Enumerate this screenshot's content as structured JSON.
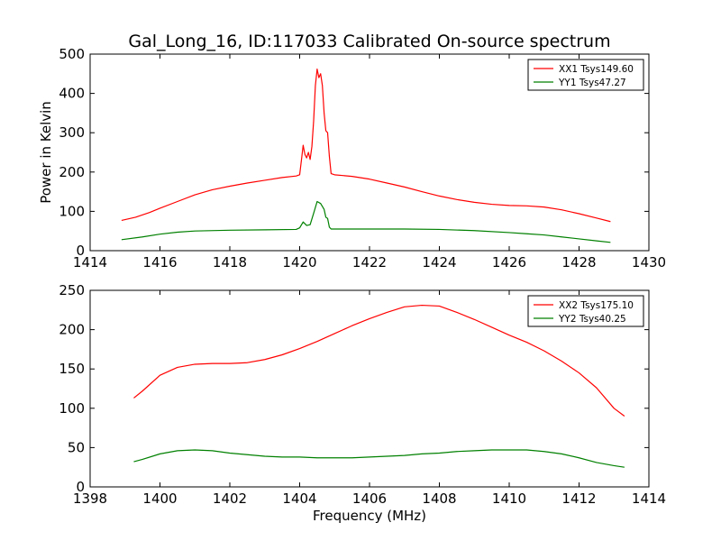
{
  "chart_data": [
    {
      "type": "line",
      "title": "Gal_Long_16, ID:117033 Calibrated On-source spectrum",
      "xlabel": "",
      "ylabel": "Power in Kelvin",
      "xlim": [
        1414,
        1430
      ],
      "ylim": [
        0,
        500
      ],
      "xticks": [
        1414,
        1416,
        1418,
        1420,
        1422,
        1424,
        1426,
        1428,
        1430
      ],
      "yticks": [
        0,
        100,
        200,
        300,
        400,
        500
      ],
      "grid": false,
      "legend": "top-right",
      "series": [
        {
          "name": "XX1 Tsys149.60",
          "color": "#ff0000",
          "points": [
            [
              1414.9,
              77
            ],
            [
              1415.3,
              85
            ],
            [
              1415.7,
              97
            ],
            [
              1416.0,
              108
            ],
            [
              1416.5,
              125
            ],
            [
              1417.0,
              142
            ],
            [
              1417.5,
              155
            ],
            [
              1418.0,
              164
            ],
            [
              1418.5,
              172
            ],
            [
              1419.0,
              179
            ],
            [
              1419.5,
              186
            ],
            [
              1419.9,
              190
            ],
            [
              1420.0,
              193
            ],
            [
              1420.05,
              230
            ],
            [
              1420.1,
              268
            ],
            [
              1420.15,
              245
            ],
            [
              1420.2,
              236
            ],
            [
              1420.25,
              250
            ],
            [
              1420.3,
              232
            ],
            [
              1420.35,
              265
            ],
            [
              1420.4,
              330
            ],
            [
              1420.45,
              420
            ],
            [
              1420.5,
              462
            ],
            [
              1420.55,
              440
            ],
            [
              1420.6,
              450
            ],
            [
              1420.65,
              420
            ],
            [
              1420.7,
              350
            ],
            [
              1420.75,
              305
            ],
            [
              1420.8,
              300
            ],
            [
              1420.85,
              240
            ],
            [
              1420.9,
              196
            ],
            [
              1421.0,
              193
            ],
            [
              1421.5,
              189
            ],
            [
              1422.0,
              182
            ],
            [
              1422.5,
              172
            ],
            [
              1423.0,
              162
            ],
            [
              1423.5,
              150
            ],
            [
              1424.0,
              139
            ],
            [
              1424.5,
              130
            ],
            [
              1425.0,
              123
            ],
            [
              1425.5,
              118
            ],
            [
              1426.0,
              115
            ],
            [
              1426.5,
              114
            ],
            [
              1427.0,
              111
            ],
            [
              1427.5,
              104
            ],
            [
              1428.0,
              94
            ],
            [
              1428.5,
              83
            ],
            [
              1428.9,
              74
            ]
          ]
        },
        {
          "name": "YY1 Tsys47.27",
          "color": "#008000",
          "points": [
            [
              1414.9,
              28
            ],
            [
              1415.5,
              35
            ],
            [
              1416.0,
              42
            ],
            [
              1416.5,
              47
            ],
            [
              1417.0,
              50
            ],
            [
              1418.0,
              52
            ],
            [
              1419.0,
              53
            ],
            [
              1419.9,
              54
            ],
            [
              1420.0,
              58
            ],
            [
              1420.1,
              73
            ],
            [
              1420.2,
              64
            ],
            [
              1420.3,
              66
            ],
            [
              1420.4,
              95
            ],
            [
              1420.5,
              125
            ],
            [
              1420.6,
              120
            ],
            [
              1420.7,
              105
            ],
            [
              1420.75,
              85
            ],
            [
              1420.8,
              82
            ],
            [
              1420.85,
              60
            ],
            [
              1420.9,
              55
            ],
            [
              1421.5,
              55
            ],
            [
              1422.0,
              55
            ],
            [
              1423.0,
              55
            ],
            [
              1424.0,
              54
            ],
            [
              1425.0,
              51
            ],
            [
              1426.0,
              46
            ],
            [
              1426.5,
              43
            ],
            [
              1427.0,
              40
            ],
            [
              1427.5,
              35
            ],
            [
              1428.0,
              30
            ],
            [
              1428.5,
              25
            ],
            [
              1428.9,
              21
            ]
          ]
        }
      ]
    },
    {
      "type": "line",
      "title": "",
      "xlabel": "Frequency (MHz)",
      "ylabel": "",
      "xlim": [
        1398,
        1414
      ],
      "ylim": [
        0,
        250
      ],
      "xticks": [
        1398,
        1400,
        1402,
        1404,
        1406,
        1408,
        1410,
        1412,
        1414
      ],
      "yticks": [
        0,
        50,
        100,
        150,
        200,
        250
      ],
      "grid": false,
      "legend": "top-right",
      "series": [
        {
          "name": "XX2 Tsys175.10",
          "color": "#ff0000",
          "points": [
            [
              1399.25,
              113
            ],
            [
              1399.5,
              122
            ],
            [
              1400.0,
              142
            ],
            [
              1400.5,
              152
            ],
            [
              1401.0,
              156
            ],
            [
              1401.5,
              157
            ],
            [
              1402.0,
              157
            ],
            [
              1402.5,
              158
            ],
            [
              1403.0,
              162
            ],
            [
              1403.5,
              168
            ],
            [
              1404.0,
              176
            ],
            [
              1404.5,
              185
            ],
            [
              1405.0,
              195
            ],
            [
              1405.5,
              205
            ],
            [
              1406.0,
              214
            ],
            [
              1406.5,
              222
            ],
            [
              1407.0,
              229
            ],
            [
              1407.5,
              231
            ],
            [
              1408.0,
              230
            ],
            [
              1408.5,
              222
            ],
            [
              1409.0,
              213
            ],
            [
              1409.5,
              203
            ],
            [
              1410.0,
              193
            ],
            [
              1410.5,
              184
            ],
            [
              1411.0,
              173
            ],
            [
              1411.5,
              160
            ],
            [
              1412.0,
              145
            ],
            [
              1412.5,
              126
            ],
            [
              1413.0,
              100
            ],
            [
              1413.3,
              90
            ]
          ]
        },
        {
          "name": "YY2 Tsys40.25",
          "color": "#008000",
          "points": [
            [
              1399.25,
              32
            ],
            [
              1399.5,
              35
            ],
            [
              1400.0,
              42
            ],
            [
              1400.5,
              46
            ],
            [
              1401.0,
              47
            ],
            [
              1401.5,
              46
            ],
            [
              1402.0,
              43
            ],
            [
              1402.5,
              41
            ],
            [
              1403.0,
              39
            ],
            [
              1403.5,
              38
            ],
            [
              1404.0,
              38
            ],
            [
              1404.5,
              37
            ],
            [
              1405.0,
              37
            ],
            [
              1405.5,
              37
            ],
            [
              1406.0,
              38
            ],
            [
              1406.5,
              39
            ],
            [
              1407.0,
              40
            ],
            [
              1407.5,
              42
            ],
            [
              1408.0,
              43
            ],
            [
              1408.5,
              45
            ],
            [
              1409.0,
              46
            ],
            [
              1409.5,
              47
            ],
            [
              1410.0,
              47
            ],
            [
              1410.5,
              47
            ],
            [
              1411.0,
              45
            ],
            [
              1411.5,
              42
            ],
            [
              1412.0,
              37
            ],
            [
              1412.5,
              31
            ],
            [
              1413.0,
              27
            ],
            [
              1413.3,
              25
            ]
          ]
        }
      ]
    }
  ]
}
